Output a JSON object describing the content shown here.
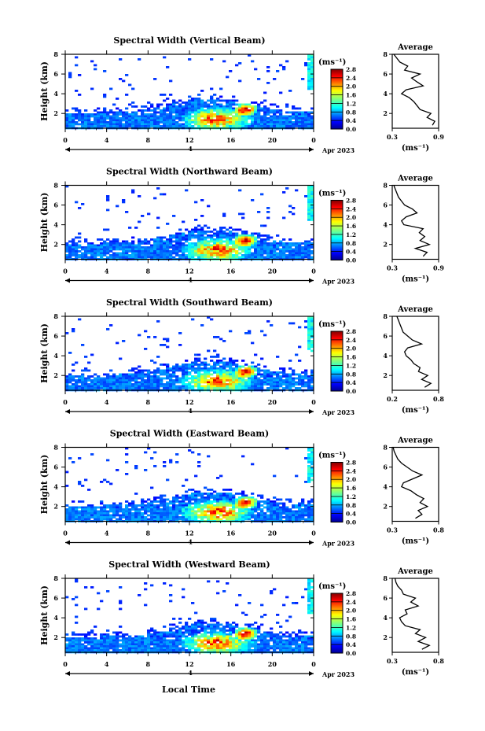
{
  "figure": {
    "xlabel": "Local Time",
    "date_label": "4",
    "date_suffix": "Apr 2023",
    "colorbar_unit": "(ms⁻¹)",
    "avg_title": "Average",
    "avg_unit": "(ms⁻¹)",
    "y_label": "Height (km)",
    "x_ticks": [
      "0",
      "4",
      "8",
      "12",
      "16",
      "20",
      "0"
    ],
    "y_ticks": [
      "2",
      "4",
      "6",
      "8"
    ],
    "colorbar_ticks": [
      "0.0",
      "0.4",
      "0.8",
      "1.2",
      "1.6",
      "2.0",
      "2.4",
      "2.8"
    ]
  },
  "chart_data": [
    {
      "type": "heatmap",
      "title": "Spectral Width (Vertical Beam)",
      "xlabel": "Local Time",
      "ylabel": "Height (km)",
      "xlim": [
        0,
        24
      ],
      "ylim": [
        0.5,
        8
      ],
      "clim": [
        0,
        2.8
      ],
      "avg_profile": {
        "xlim": [
          0.3,
          0.9
        ],
        "xticks": [
          "0.3",
          "0.9"
        ],
        "height": [
          0.8,
          1.2,
          1.6,
          2.0,
          2.4,
          2.8,
          3.2,
          3.6,
          4.0,
          4.4,
          4.8,
          5.2,
          5.6,
          6.0,
          6.4,
          6.8,
          7.2,
          7.6,
          8.0
        ],
        "values": [
          0.82,
          0.85,
          0.75,
          0.8,
          0.66,
          0.62,
          0.58,
          0.52,
          0.42,
          0.48,
          0.7,
          0.62,
          0.55,
          0.66,
          0.46,
          0.5,
          0.4,
          0.36,
          0.32
        ]
      }
    },
    {
      "type": "heatmap",
      "title": "Spectral Width (Northward Beam)",
      "xlabel": "Local Time",
      "ylabel": "Height (km)",
      "xlim": [
        0,
        24
      ],
      "ylim": [
        0.5,
        8
      ],
      "clim": [
        0,
        2.8
      ],
      "avg_profile": {
        "xlim": [
          0.3,
          0.9
        ],
        "xticks": [
          "0.3",
          "0.9"
        ],
        "height": [
          0.8,
          1.2,
          1.6,
          2.0,
          2.4,
          2.8,
          3.2,
          3.6,
          4.0,
          4.4,
          4.8,
          5.2,
          5.6,
          6.0,
          6.4,
          6.8,
          7.2,
          7.6,
          8.0
        ],
        "values": [
          0.7,
          0.75,
          0.6,
          0.78,
          0.66,
          0.72,
          0.65,
          0.7,
          0.45,
          0.42,
          0.48,
          0.62,
          0.56,
          0.46,
          0.42,
          0.38,
          0.36,
          0.34,
          0.32
        ]
      }
    },
    {
      "type": "heatmap",
      "title": "Spectral Width (Southward Beam)",
      "xlabel": "Local Time",
      "ylabel": "Height (km)",
      "xlim": [
        0,
        24
      ],
      "ylim": [
        0.5,
        8
      ],
      "clim": [
        0,
        2.8
      ],
      "avg_profile": {
        "xlim": [
          0.2,
          0.8
        ],
        "xticks": [
          "0.2",
          "0.8"
        ],
        "height": [
          0.8,
          1.2,
          1.6,
          2.0,
          2.4,
          2.8,
          3.2,
          3.6,
          4.0,
          4.4,
          4.8,
          5.2,
          5.6,
          6.0,
          6.4,
          6.8,
          7.2,
          7.6,
          8.0
        ],
        "values": [
          0.62,
          0.7,
          0.58,
          0.66,
          0.54,
          0.56,
          0.48,
          0.44,
          0.38,
          0.36,
          0.4,
          0.58,
          0.46,
          0.4,
          0.34,
          0.32,
          0.3,
          0.28,
          0.26
        ]
      }
    },
    {
      "type": "heatmap",
      "title": "Spectral Width (Eastward Beam)",
      "xlabel": "Local Time",
      "ylabel": "Height (km)",
      "xlim": [
        0,
        24
      ],
      "ylim": [
        0.5,
        8
      ],
      "clim": [
        0,
        2.8
      ],
      "avg_profile": {
        "xlim": [
          0.3,
          0.8
        ],
        "xticks": [
          "0.3",
          "0.8"
        ],
        "height": [
          0.8,
          1.2,
          1.6,
          2.0,
          2.4,
          2.8,
          3.2,
          3.6,
          4.0,
          4.4,
          4.8,
          5.2,
          5.6,
          6.0,
          6.4,
          6.8,
          7.2,
          7.6,
          8.0
        ],
        "values": [
          0.55,
          0.62,
          0.58,
          0.68,
          0.6,
          0.64,
          0.56,
          0.5,
          0.4,
          0.42,
          0.52,
          0.62,
          0.52,
          0.46,
          0.4,
          0.36,
          0.34,
          0.32,
          0.31
        ]
      }
    },
    {
      "type": "heatmap",
      "title": "Spectral Width (Westward Beam)",
      "xlabel": "Local Time",
      "ylabel": "Height (km)",
      "xlim": [
        0,
        24
      ],
      "ylim": [
        0.5,
        8
      ],
      "clim": [
        0,
        2.8
      ],
      "avg_profile": {
        "xlim": [
          0.3,
          0.8
        ],
        "xticks": [
          "0.3",
          "0.8"
        ],
        "height": [
          0.8,
          1.2,
          1.6,
          2.0,
          2.4,
          2.8,
          3.2,
          3.6,
          4.0,
          4.4,
          4.8,
          5.2,
          5.6,
          6.0,
          6.4,
          6.8,
          7.2,
          7.6,
          8.0
        ],
        "values": [
          0.62,
          0.7,
          0.58,
          0.66,
          0.55,
          0.6,
          0.44,
          0.4,
          0.38,
          0.46,
          0.44,
          0.58,
          0.5,
          0.55,
          0.42,
          0.4,
          0.36,
          0.34,
          0.33
        ]
      }
    }
  ]
}
